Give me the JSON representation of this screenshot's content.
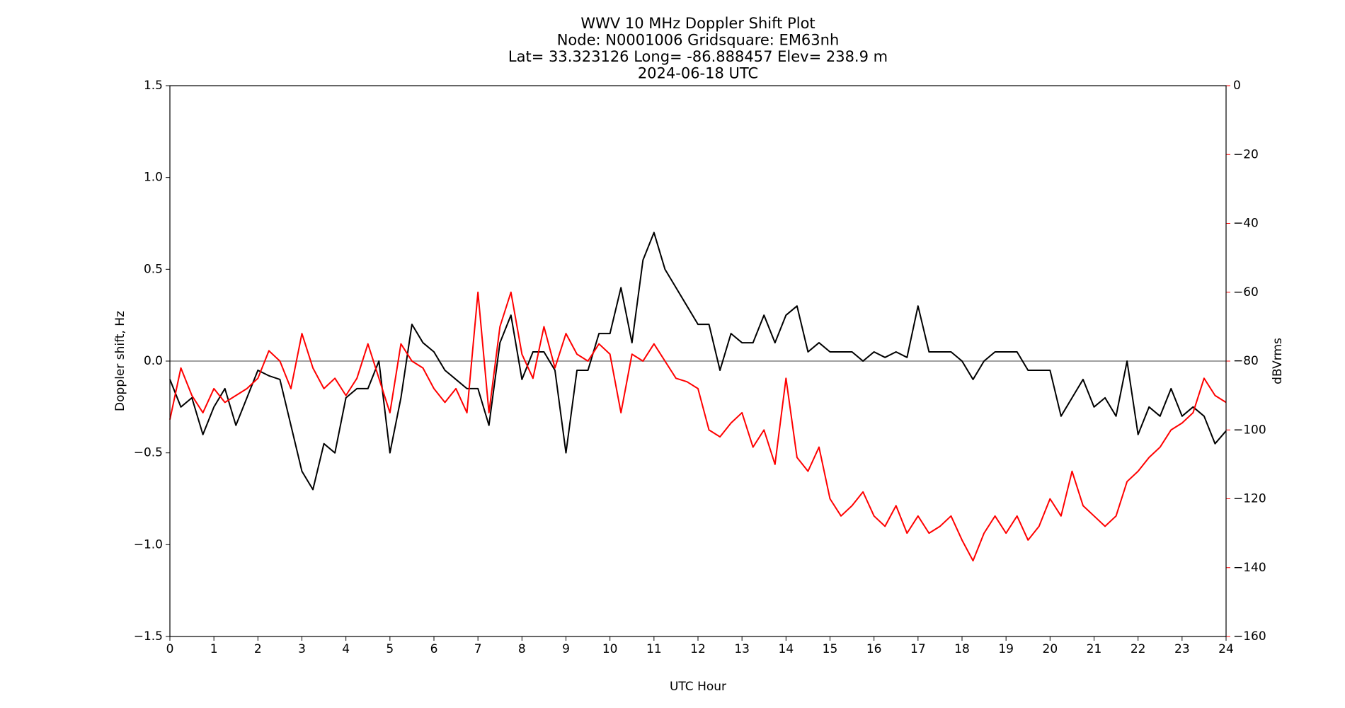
{
  "chart_data": {
    "type": "line",
    "title_lines": [
      "WWV 10 MHz Doppler Shift Plot",
      "Node:  N0001006     Gridsquare:  EM63nh",
      "Lat= 33.323126    Long= -86.888457    Elev= 238.9 m",
      "2024-06-18  UTC"
    ],
    "x_label": "UTC Hour",
    "y_label": "Doppler shift, Hz",
    "y2_label": "dBVrms",
    "y2_color": "#ff0000",
    "x": [
      0,
      0.25,
      0.5,
      0.75,
      1,
      1.25,
      1.5,
      1.75,
      2,
      2.25,
      2.5,
      2.75,
      3,
      3.25,
      3.5,
      3.75,
      4,
      4.25,
      4.5,
      4.75,
      5,
      5.25,
      5.5,
      5.75,
      6,
      6.25,
      6.5,
      6.75,
      7,
      7.25,
      7.5,
      7.75,
      8,
      8.25,
      8.5,
      8.75,
      9,
      9.25,
      9.5,
      9.75,
      10,
      10.25,
      10.5,
      10.75,
      11,
      11.25,
      11.5,
      11.75,
      12,
      12.25,
      12.5,
      12.75,
      13,
      13.25,
      13.5,
      13.75,
      14,
      14.25,
      14.5,
      14.75,
      15,
      15.25,
      15.5,
      15.75,
      16,
      16.25,
      16.5,
      16.75,
      17,
      17.25,
      17.5,
      17.75,
      18,
      18.25,
      18.5,
      18.75,
      19,
      19.25,
      19.5,
      19.75,
      20,
      20.25,
      20.5,
      20.75,
      21,
      21.25,
      21.5,
      21.75,
      22,
      22.25,
      22.5,
      22.75,
      23,
      23.25,
      23.5,
      23.75,
      24
    ],
    "series": [
      {
        "name": "Doppler shift",
        "color": "#000000",
        "values": [
          -0.1,
          -0.25,
          -0.2,
          -0.4,
          -0.25,
          -0.15,
          -0.35,
          -0.2,
          -0.05,
          -0.08,
          -0.1,
          -0.35,
          -0.6,
          -0.7,
          -0.45,
          -0.5,
          -0.2,
          -0.15,
          -0.15,
          0.0,
          -0.5,
          -0.2,
          0.2,
          0.1,
          0.05,
          -0.05,
          -0.1,
          -0.15,
          -0.15,
          -0.35,
          0.1,
          0.25,
          -0.1,
          0.05,
          0.05,
          -0.05,
          -0.5,
          -0.05,
          -0.05,
          0.15,
          0.15,
          0.4,
          0.1,
          0.55,
          0.7,
          0.5,
          0.4,
          0.3,
          0.2,
          0.2,
          -0.05,
          0.15,
          0.1,
          0.1,
          0.25,
          0.1,
          0.25,
          0.3,
          0.05,
          0.1,
          0.05,
          0.05,
          0.05,
          0.0,
          0.05,
          0.02,
          0.05,
          0.02,
          0.3,
          0.05,
          0.05,
          0.05,
          0.0,
          -0.1,
          0.0,
          0.05,
          0.05,
          0.05,
          -0.05,
          -0.05,
          -0.05,
          -0.3,
          -0.2,
          -0.1,
          -0.25,
          -0.2,
          -0.3,
          0.0,
          -0.4,
          -0.25,
          -0.3,
          -0.15,
          -0.3,
          -0.25,
          -0.3,
          -0.45,
          -0.38
        ]
      },
      {
        "name": "dBVrms",
        "color": "#ff0000",
        "axis": "y2",
        "values": [
          -97,
          -82,
          -90,
          -95,
          -88,
          -92,
          -90,
          -88,
          -85,
          -77,
          -80,
          -88,
          -72,
          -82,
          -88,
          -85,
          -90,
          -85,
          -75,
          -85,
          -95,
          -75,
          -80,
          -82,
          -88,
          -92,
          -88,
          -95,
          -60,
          -95,
          -70,
          -60,
          -78,
          -85,
          -70,
          -82,
          -72,
          -78,
          -80,
          -75,
          -78,
          -95,
          -78,
          -80,
          -75,
          -80,
          -85,
          -86,
          -88,
          -100,
          -102,
          -98,
          -95,
          -105,
          -100,
          -110,
          -85,
          -108,
          -112,
          -105,
          -120,
          -125,
          -122,
          -118,
          -125,
          -128,
          -122,
          -130,
          -125,
          -130,
          -128,
          -125,
          -132,
          -138,
          -130,
          -125,
          -130,
          -125,
          -132,
          -128,
          -120,
          -125,
          -112,
          -122,
          -125,
          -128,
          -125,
          -115,
          -112,
          -108,
          -105,
          -100,
          -98,
          -95,
          -85,
          -90,
          -92
        ]
      }
    ],
    "hlines": [
      {
        "value": 0,
        "color": "#808080"
      }
    ],
    "xlim": [
      0,
      24
    ],
    "xticks": [
      0,
      1,
      2,
      3,
      4,
      5,
      6,
      7,
      8,
      9,
      10,
      11,
      12,
      13,
      14,
      15,
      16,
      17,
      18,
      19,
      20,
      21,
      22,
      23,
      24
    ],
    "ylim": [
      -1.5,
      1.5
    ],
    "yticks": [
      {
        "value": -1.5,
        "label": "−1.5"
      },
      {
        "value": -1.0,
        "label": "−1.0"
      },
      {
        "value": -0.5,
        "label": "−0.5"
      },
      {
        "value": 0,
        "label": "0.0"
      },
      {
        "value": 0.5,
        "label": "0.5"
      },
      {
        "value": 1.0,
        "label": "1.0"
      },
      {
        "value": 1.5,
        "label": "1.5"
      }
    ],
    "y2lim": [
      -160,
      0
    ],
    "y2ticks": [
      {
        "value": -160,
        "label": "−160"
      },
      {
        "value": -140,
        "label": "−140"
      },
      {
        "value": -120,
        "label": "−120"
      },
      {
        "value": -100,
        "label": "−100"
      },
      {
        "value": -80,
        "label": "−80"
      },
      {
        "value": -60,
        "label": "−60"
      },
      {
        "value": -40,
        "label": "−40"
      },
      {
        "value": -20,
        "label": "−20"
      },
      0
    ]
  }
}
